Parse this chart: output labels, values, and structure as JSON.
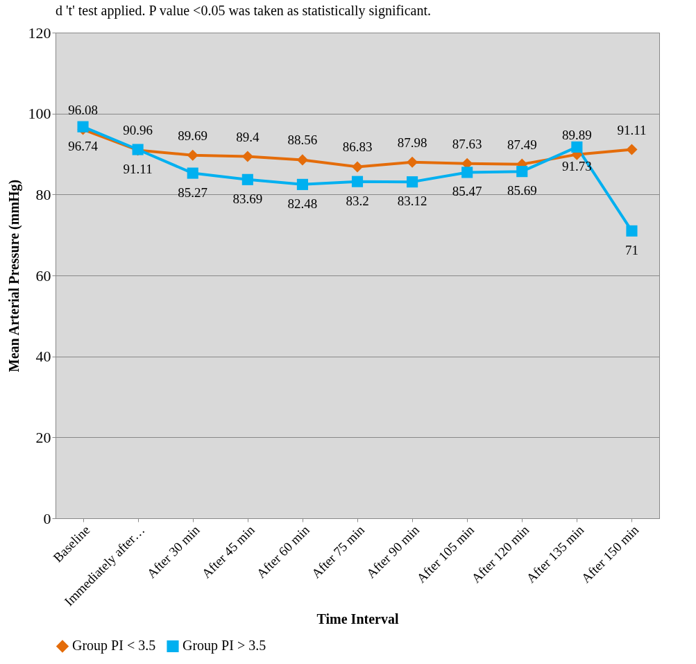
{
  "chart_data": {
    "type": "line",
    "annotations": [
      "d 't' test applied. P value <0.05 was taken as statistically significant."
    ],
    "xlabel": "Time Interval",
    "ylabel": "Mean Arterial Pressure (mmHg)",
    "categories": [
      "Baseline",
      "Immediately after…",
      "After 30 min",
      "After 45 min",
      "After 60 min",
      "After 75 min",
      "After 90 min",
      "After 105 min",
      "After 120 min",
      "After 135 min",
      "After 150 min"
    ],
    "series": [
      {
        "name": "Group PI < 3.5",
        "color": "#e46c0a",
        "marker": "diamond",
        "values": [
          96.08,
          90.96,
          89.69,
          89.4,
          88.56,
          86.83,
          87.98,
          87.63,
          87.49,
          89.89,
          91.11
        ]
      },
      {
        "name": "Group PI > 3.5",
        "color": "#00b0f0",
        "marker": "square",
        "values": [
          96.74,
          91.11,
          85.27,
          83.69,
          82.48,
          83.2,
          83.12,
          85.47,
          85.69,
          91.73,
          71
        ]
      }
    ],
    "ylim": [
      0,
      120
    ],
    "yticks": [
      0,
      20,
      40,
      60,
      80,
      100,
      120
    ],
    "grid": "y",
    "legend": "bottom",
    "data_labels": true
  }
}
